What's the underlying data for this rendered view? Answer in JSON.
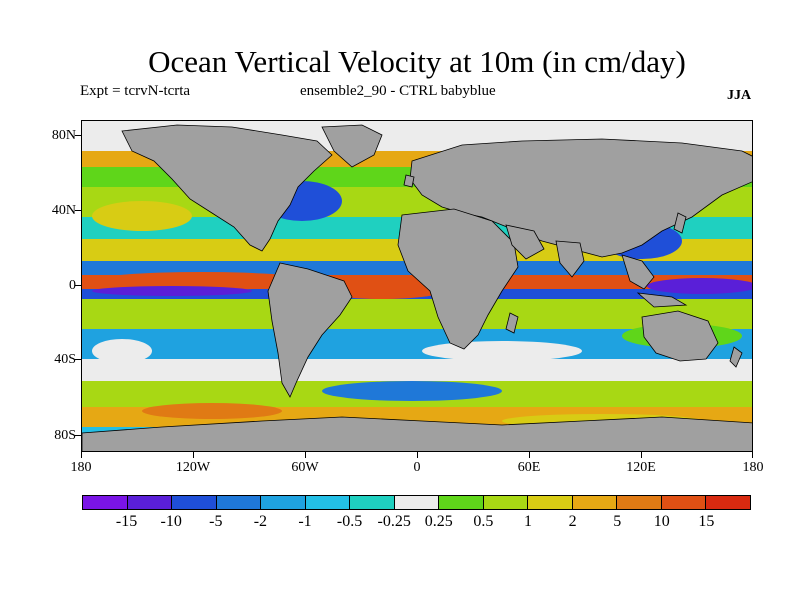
{
  "header": {
    "title": "Ocean Vertical Velocity at 10m (in cm/day)",
    "left_label": "Expt = tcrvN-tcrta",
    "center_label": "ensemble2_90 - CTRL babyblue",
    "right_label": "JJA"
  },
  "axes": {
    "y_ticks": [
      "80N",
      "40N",
      "0",
      "40S",
      "80S"
    ],
    "x_ticks": [
      "180",
      "120W",
      "60W",
      "0",
      "60E",
      "120E",
      "180"
    ]
  },
  "colorbar": {
    "labels": [
      "-15",
      "-10",
      "-5",
      "-2",
      "-1",
      "-0.5",
      "-0.25",
      "0.25",
      "0.5",
      "1",
      "2",
      "5",
      "10",
      "15"
    ],
    "colors": [
      "#7a14e6",
      "#5a1fd8",
      "#1f4fd8",
      "#1f78d8",
      "#1fa2e0",
      "#23bfe6",
      "#1fd0c0",
      "#ececec",
      "#5fd61a",
      "#a8d814",
      "#d8cc14",
      "#e6a814",
      "#e07a14",
      "#e05014",
      "#d82a10"
    ]
  },
  "map": {
    "land_color": "#a0a0a0",
    "ocean_background": "#23bfe6"
  }
}
